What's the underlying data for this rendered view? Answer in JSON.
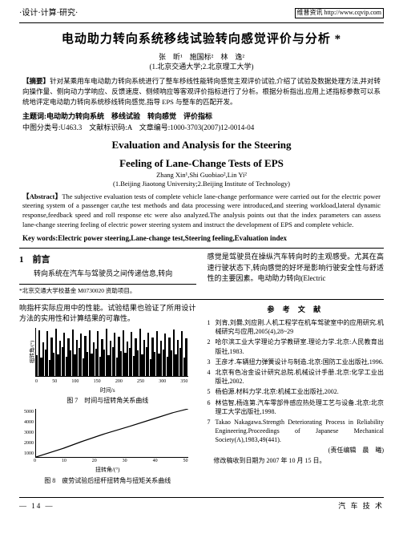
{
  "header": {
    "section_label": "·设计·计算·研究·",
    "url_box": "维普资讯 http://www.cqvip.com"
  },
  "title_cn": "电动助力转向系统移线试验转向感觉评价与分析 *",
  "authors_cn": "张　昕¹　施国标²　林　逸²",
  "affil_cn": "(1.北京交通大学;2.北京理工大学)",
  "abstract_cn_label": "【摘要】",
  "abstract_cn": "针对某乘用车电动助力转向系统进行了整车移线性能转向感觉主观评价试验,介绍了试验及数据处理方法,并对转向操作量、侧向动力学响应、反馈速度、侧倾响应等客观评价指标进行了分析。根据分析指出,应用上述指标参数可以系统地评定电动助力转向系统移线转向感觉,指导 EPS 与整车的匹配开发。",
  "subject_line": "主题词:电动助力转向系统　移线试验　转向感觉　评价指标",
  "class_line": "中图分类号:U463.3　文献标识码:A　文章编号:1000-3703(2007)12-0014-04",
  "title_en_l1": "Evaluation and Analysis for the Steering",
  "title_en_l2": "Feeling of Lane-Change Tests of EPS",
  "authors_en": "Zhang Xin¹,Shi Guobiao²,Lin Yi²",
  "affil_en": "(1.Beijing Jiaotong University;2.Beijing Institute of Technology)",
  "abstract_en_label": "【Abstract】",
  "abstract_en": "The subjective evaluation tests of complete vehicle lane-change performance were carried out for the electric power steering system of a passenger car,the test methods and data processing were introduced,and steering workload,lateral dynamic response,feedback speed and roll response etc were also analyzed.The analysis points out that the index parameters can assess lane-change steering feeling of electric power steering system and instruct the development of EPS and complete vehicle.",
  "keywords_en": "Key words:Electric power steering,Lane-change test,Steering feeling,Evaluation index",
  "section1": {
    "num": "1",
    "title": "前言",
    "para1": "转向系统在汽车与驾驶员之间传递信息,转向",
    "para_right": "感觉是驾驶员在操纵汽车转向时的主观感受。尤其在高速行驶状态下,转向感觉的好坏是影响行驶安全性与舒适性的主要因素。电动助力转向(Electric"
  },
  "footnote": "*北京交通大学校基金 M0730020 资助项目。",
  "left_bottom_para": "响指杆实际应用中的性能。试验结果也验证了所用设计方法的实用性和计算结果的可靠性。",
  "fig7": {
    "caption": "图 7　时间与扭转角关系曲线",
    "y_label": "扭转角/(°)",
    "x_ticks": [
      "0",
      "50",
      "100",
      "150",
      "200",
      "250",
      "300",
      "350"
    ],
    "x_label": "时间/s",
    "noise_heights_pct": [
      42,
      95,
      38,
      70,
      55,
      92,
      33,
      80,
      48,
      98,
      45,
      72,
      60,
      90,
      40,
      78,
      52,
      96,
      44,
      74,
      58,
      88,
      36,
      82,
      50,
      94,
      46,
      70,
      56,
      92,
      39,
      76,
      54,
      97,
      43,
      73,
      59,
      89,
      37,
      81,
      51,
      95,
      47,
      71,
      57,
      91,
      41,
      77,
      53,
      98,
      45,
      75,
      60,
      90,
      35,
      79,
      49,
      93,
      46,
      72,
      55,
      88,
      40,
      80,
      52,
      96,
      44,
      74,
      58,
      92,
      38,
      78
    ]
  },
  "fig8": {
    "caption": "图 8　疲劳试验后扭杆扭转角与扭矩关系曲线",
    "y_label": "扭矩/(N·m)",
    "y_ticks": [
      "5000",
      "4000",
      "3000",
      "2000",
      "1000"
    ],
    "x_ticks": [
      "0",
      "10",
      "20",
      "30",
      "40",
      "50"
    ],
    "x_label": "扭转角/(°)",
    "line_color": "#000",
    "points": [
      [
        0,
        100
      ],
      [
        8,
        92
      ],
      [
        18,
        82
      ],
      [
        30,
        68
      ],
      [
        45,
        52
      ],
      [
        62,
        36
      ],
      [
        78,
        20
      ],
      [
        90,
        8
      ],
      [
        100,
        0
      ]
    ]
  },
  "refs_title": "参 考 文 献",
  "refs": [
    {
      "n": "1",
      "t": "刘肯,刘爨,刘应刚.人机工程学在机车驾驶室中的应用研究.机械研究与应用,2005(4),28~29"
    },
    {
      "n": "2",
      "t": "哈尔滨工业大学理论力学教研室.理论力学.北京:人民教育出版社,1983."
    },
    {
      "n": "3",
      "t": "王彦才.车辆扭力弹簧设计与制造.北京:国防工业出版社,1996."
    },
    {
      "n": "4",
      "t": "北京有色冶金设计研究总院.机械设计手册.北京:化学工业出版社,2002."
    },
    {
      "n": "5",
      "t": "杨伯源.材料力学.北京:机械工业出版社,2002."
    },
    {
      "n": "6",
      "t": "林信智,杨连第.汽车零部件感应热处理工艺与设备.北京:北京理工大学出版社,1998."
    },
    {
      "n": "7",
      "t": "Takao Nakagawa.Strength Deteriorating Process in Reliability Engineering.Proceedings of Japanese Mechanical Society(A),1983,49(441)."
    }
  ],
  "editor_note": "(责任编辑　晨　曦)",
  "recv_date": "修改稿收到日期为 2007 年 10 月 15 日。",
  "footer": {
    "page": "— 14 —",
    "journal": "汽 车 技 术"
  }
}
